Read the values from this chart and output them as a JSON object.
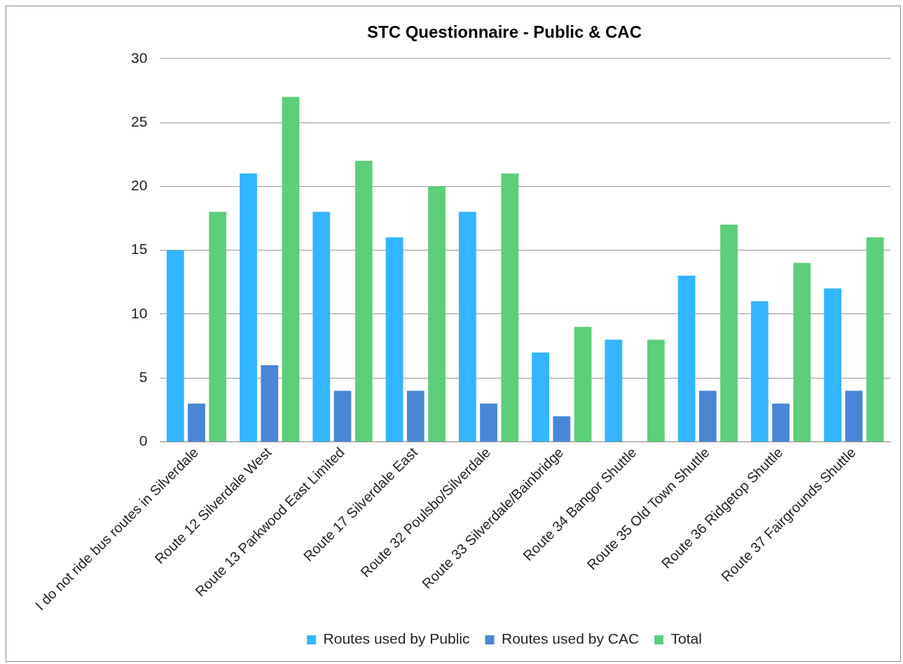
{
  "chart_data": {
    "type": "bar",
    "title": "STC Questionnaire - Public & CAC",
    "categories": [
      "I do not ride bus routes in Silverdale",
      "Route 12 Silverdale West",
      "Route 13 Parkwood East Limited",
      "Route 17 Silverdale East",
      "Route 32 Poulsbo/Silverdale",
      "Route 33 Silverdale/Bainbridge",
      "Route 34 Bangor Shuttle",
      "Route 35 Old Town Shuttle",
      "Route 36 Ridgetop Shuttle",
      "Route 37 Fairgrounds Shuttle"
    ],
    "series": [
      {
        "name": "Routes used by Public",
        "color": "#33b5ff",
        "values": [
          15,
          21,
          18,
          16,
          18,
          7,
          8,
          13,
          11,
          12
        ]
      },
      {
        "name": "Routes used by CAC",
        "color": "#4a86d6",
        "values": [
          3,
          6,
          4,
          4,
          3,
          2,
          0,
          4,
          3,
          4
        ]
      },
      {
        "name": "Total",
        "color": "#5dce7a",
        "values": [
          18,
          27,
          22,
          20,
          21,
          9,
          8,
          17,
          14,
          16
        ]
      }
    ],
    "ylim": [
      0,
      30
    ],
    "yticks": [
      0,
      5,
      10,
      15,
      20,
      25,
      30
    ],
    "grid": "y",
    "legend": "bottom"
  }
}
